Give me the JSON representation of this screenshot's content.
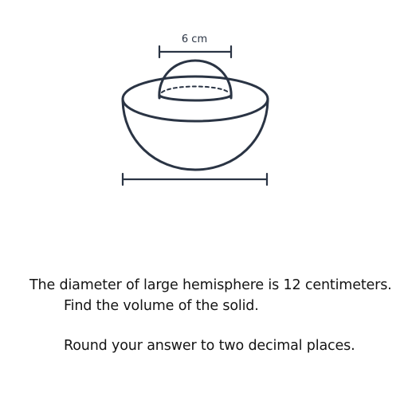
{
  "figure": {
    "small_hemisphere_label": "6 cm",
    "stroke_color": "#2a3444",
    "background": "#ffffff"
  },
  "problem": {
    "line1": "The diameter of large hemisphere is 12 centimeters.",
    "line2": "Find the volume of the solid.",
    "line3": "Round your answer to two decimal places."
  }
}
